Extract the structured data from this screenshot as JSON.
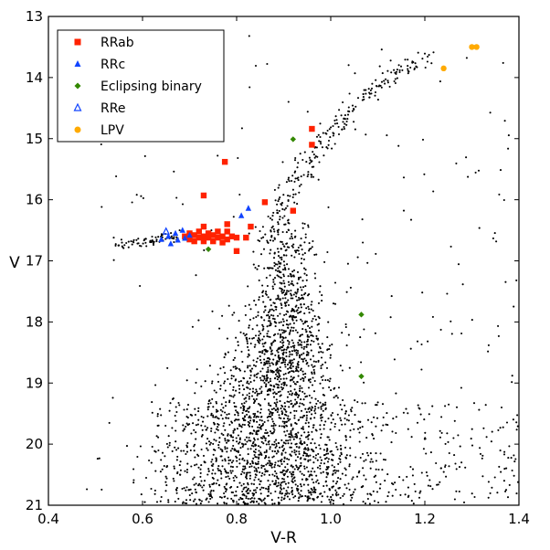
{
  "chart_data": {
    "type": "scatter",
    "title": "",
    "xlabel": "V-R",
    "ylabel": "V",
    "xlim": [
      0.4,
      1.4
    ],
    "ylim": [
      21,
      13
    ],
    "y_inverted": true,
    "grid": false,
    "legend_position": "top-left",
    "xticks": [
      "0.4",
      "0.6",
      "0.8",
      "1.0",
      "1.2",
      "1.4"
    ],
    "yticks": [
      "13",
      "14",
      "15",
      "16",
      "17",
      "18",
      "19",
      "20",
      "21"
    ],
    "background_stars": {
      "description_visible": "black dots",
      "color": "#000000",
      "sequences": {
        "main_sequence_turnoff": {
          "x_center": 0.9,
          "v_range": [
            16.3,
            21
          ]
        },
        "red_giant_branch": [
          [
            0.86,
            16.8
          ],
          [
            0.89,
            16.2
          ],
          [
            0.93,
            15.6
          ],
          [
            0.98,
            15.1
          ],
          [
            1.03,
            14.6
          ],
          [
            1.09,
            14.2
          ],
          [
            1.15,
            13.9
          ],
          [
            1.21,
            13.6
          ]
        ],
        "horizontal_branch_blue": [
          [
            0.54,
            16.75
          ],
          [
            0.58,
            16.65
          ],
          [
            0.62,
            16.6
          ],
          [
            0.66,
            16.55
          ]
        ]
      }
    },
    "series": [
      {
        "name": "RRab",
        "marker": "square",
        "color": "#ff2200",
        "points": [
          [
            0.69,
            16.6
          ],
          [
            0.7,
            16.55
          ],
          [
            0.7,
            16.65
          ],
          [
            0.71,
            16.58
          ],
          [
            0.71,
            16.68
          ],
          [
            0.72,
            16.62
          ],
          [
            0.72,
            16.52
          ],
          [
            0.73,
            16.6
          ],
          [
            0.73,
            16.44
          ],
          [
            0.73,
            16.68
          ],
          [
            0.74,
            16.55
          ],
          [
            0.74,
            16.62
          ],
          [
            0.75,
            16.58
          ],
          [
            0.75,
            16.68
          ],
          [
            0.76,
            16.62
          ],
          [
            0.76,
            16.52
          ],
          [
            0.77,
            16.6
          ],
          [
            0.77,
            16.7
          ],
          [
            0.78,
            16.52
          ],
          [
            0.78,
            16.65
          ],
          [
            0.79,
            16.6
          ],
          [
            0.8,
            16.62
          ],
          [
            0.82,
            16.62
          ],
          [
            0.78,
            16.4
          ],
          [
            0.73,
            15.93
          ],
          [
            0.775,
            15.38
          ],
          [
            0.8,
            16.84
          ],
          [
            0.83,
            16.44
          ],
          [
            0.86,
            16.04
          ],
          [
            0.92,
            16.18
          ],
          [
            0.96,
            14.84
          ],
          [
            0.96,
            15.1
          ]
        ]
      },
      {
        "name": "RRc",
        "marker": "triangle",
        "color": "#1144ff",
        "points": [
          [
            0.64,
            16.65
          ],
          [
            0.655,
            16.6
          ],
          [
            0.66,
            16.72
          ],
          [
            0.67,
            16.55
          ],
          [
            0.675,
            16.66
          ],
          [
            0.685,
            16.5
          ],
          [
            0.69,
            16.63
          ],
          [
            0.7,
            16.58
          ],
          [
            0.81,
            16.26
          ],
          [
            0.825,
            16.14
          ]
        ]
      },
      {
        "name": "Eclipsing binary",
        "marker": "diamond",
        "color": "#338800",
        "points": [
          [
            0.92,
            15.01
          ],
          [
            0.74,
            16.81
          ],
          [
            1.065,
            17.88
          ],
          [
            1.065,
            18.89
          ]
        ]
      },
      {
        "name": "RRe",
        "marker": "open-triangle",
        "color": "#1144ff",
        "points": [
          [
            0.65,
            16.52
          ]
        ]
      },
      {
        "name": "LPV",
        "marker": "circle",
        "color": "#ffaa00",
        "points": [
          [
            1.24,
            13.85
          ],
          [
            1.3,
            13.5
          ],
          [
            1.31,
            13.5
          ]
        ]
      }
    ]
  }
}
